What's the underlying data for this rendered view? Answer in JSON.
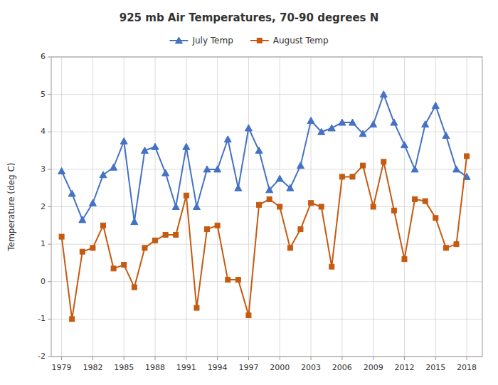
{
  "chart_data": {
    "type": "line",
    "title": "925 mb Air Temperatures, 70-90 degrees N",
    "y_label": "Temperature (deg C)",
    "x": [
      1979,
      1980,
      1981,
      1982,
      1983,
      1984,
      1985,
      1986,
      1987,
      1988,
      1989,
      1990,
      1991,
      1992,
      1993,
      1994,
      1995,
      1996,
      1997,
      1998,
      1999,
      2000,
      2001,
      2002,
      2003,
      2004,
      2005,
      2006,
      2007,
      2008,
      2009,
      2010,
      2011,
      2012,
      2013,
      2014,
      2015,
      2016,
      2017,
      2018
    ],
    "series": [
      {
        "name": "July Temp",
        "color": "#4472C4",
        "marker": "triangle",
        "values": [
          2.95,
          2.35,
          1.65,
          2.1,
          2.85,
          3.05,
          3.75,
          1.6,
          3.5,
          3.6,
          2.9,
          2.0,
          3.6,
          2.0,
          3.0,
          3.0,
          3.8,
          2.5,
          4.1,
          3.5,
          2.45,
          2.75,
          2.5,
          3.1,
          4.3,
          4.0,
          4.1,
          4.25,
          4.25,
          3.95,
          4.2,
          5.0,
          4.25,
          3.65,
          3.0,
          4.2,
          4.7,
          3.9,
          3.0,
          2.8
        ]
      },
      {
        "name": "August Temp",
        "color": "#C55A11",
        "marker": "square",
        "values": [
          1.2,
          -1.0,
          0.8,
          0.9,
          1.5,
          0.35,
          0.45,
          -0.15,
          0.9,
          1.1,
          1.25,
          1.25,
          2.3,
          -0.7,
          1.4,
          1.5,
          0.05,
          0.05,
          -0.9,
          2.05,
          2.2,
          2.0,
          0.9,
          1.4,
          2.1,
          2.0,
          0.4,
          2.8,
          2.8,
          3.1,
          2.0,
          3.2,
          1.9,
          0.6,
          2.2,
          2.15,
          1.7,
          0.9,
          1.0,
          3.35
        ]
      }
    ],
    "xlim": [
      1978.0,
      2019.5
    ],
    "ylim": [
      -2,
      6
    ],
    "xticks": [
      1979,
      1982,
      1985,
      1988,
      1991,
      1994,
      1997,
      2000,
      2003,
      2006,
      2009,
      2012,
      2015,
      2018
    ],
    "yticks": [
      -2,
      -1,
      0,
      1,
      2,
      3,
      4,
      5,
      6
    ],
    "grid": true,
    "legend": "top"
  }
}
